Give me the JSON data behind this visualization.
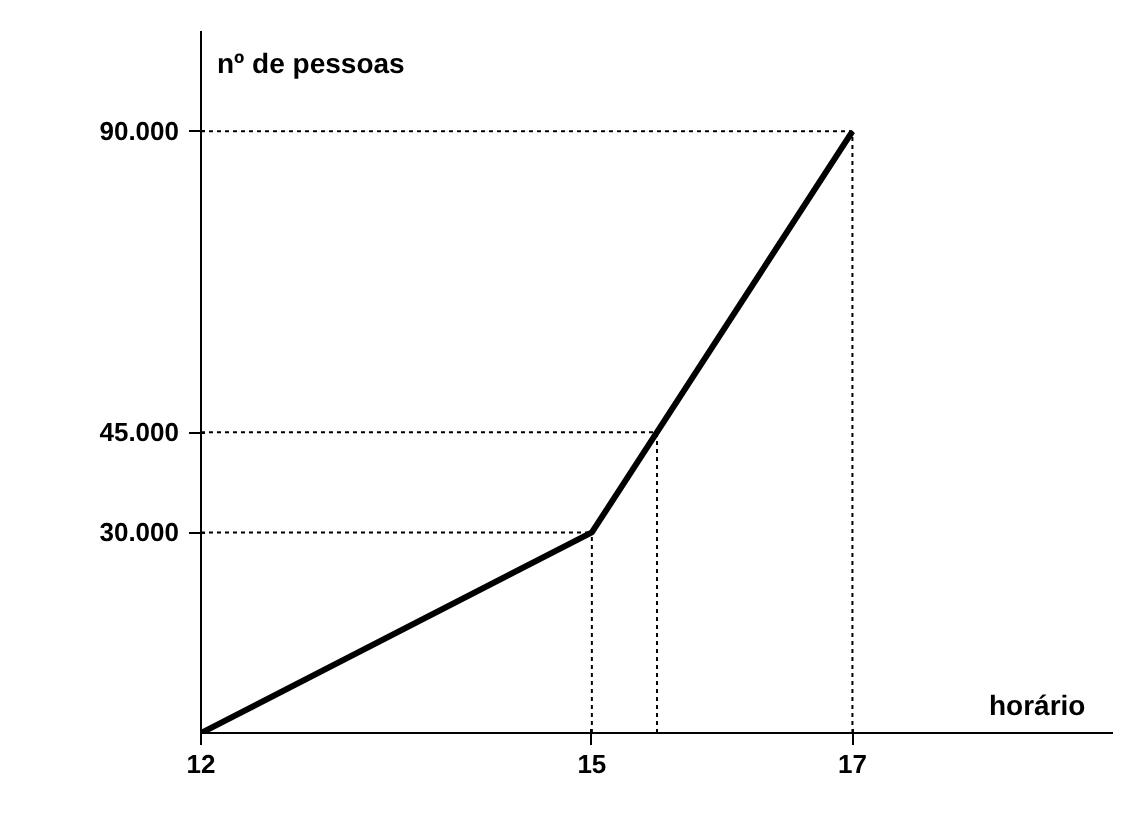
{
  "chart_data": {
    "type": "line",
    "xlabel": "horário",
    "ylabel": "nº de pessoas",
    "x": [
      12,
      15,
      15.5,
      17
    ],
    "series": [
      {
        "color": "#000000",
        "values": [
          0,
          30000,
          45000,
          90000
        ]
      }
    ],
    "xlim": [
      12,
      19
    ],
    "ylim": [
      0,
      105000
    ],
    "xticks": [
      12,
      15,
      17
    ],
    "yticks": [
      {
        "value": 30000,
        "label": "30.000"
      },
      {
        "value": 45000,
        "label": "45.000"
      },
      {
        "value": 90000,
        "label": "90.000"
      }
    ],
    "ref_lines": [
      {
        "axis": "y",
        "value": 30000,
        "color": "#000000",
        "line_style": "dotted"
      },
      {
        "axis": "y",
        "value": 45000,
        "color": "#000000",
        "line_style": "dotted"
      },
      {
        "axis": "y",
        "value": 90000,
        "color": "#000000",
        "line_style": "dotted"
      },
      {
        "axis": "x",
        "value": 15,
        "color": "#000000",
        "line_style": "dotted"
      },
      {
        "axis": "x",
        "value": 15.5,
        "color": "#000000",
        "line_style": "dotted"
      },
      {
        "axis": "x",
        "value": 17,
        "color": "#000000",
        "line_style": "dotted"
      }
    ],
    "grid": false,
    "marker": "none",
    "line_style": "solid"
  }
}
